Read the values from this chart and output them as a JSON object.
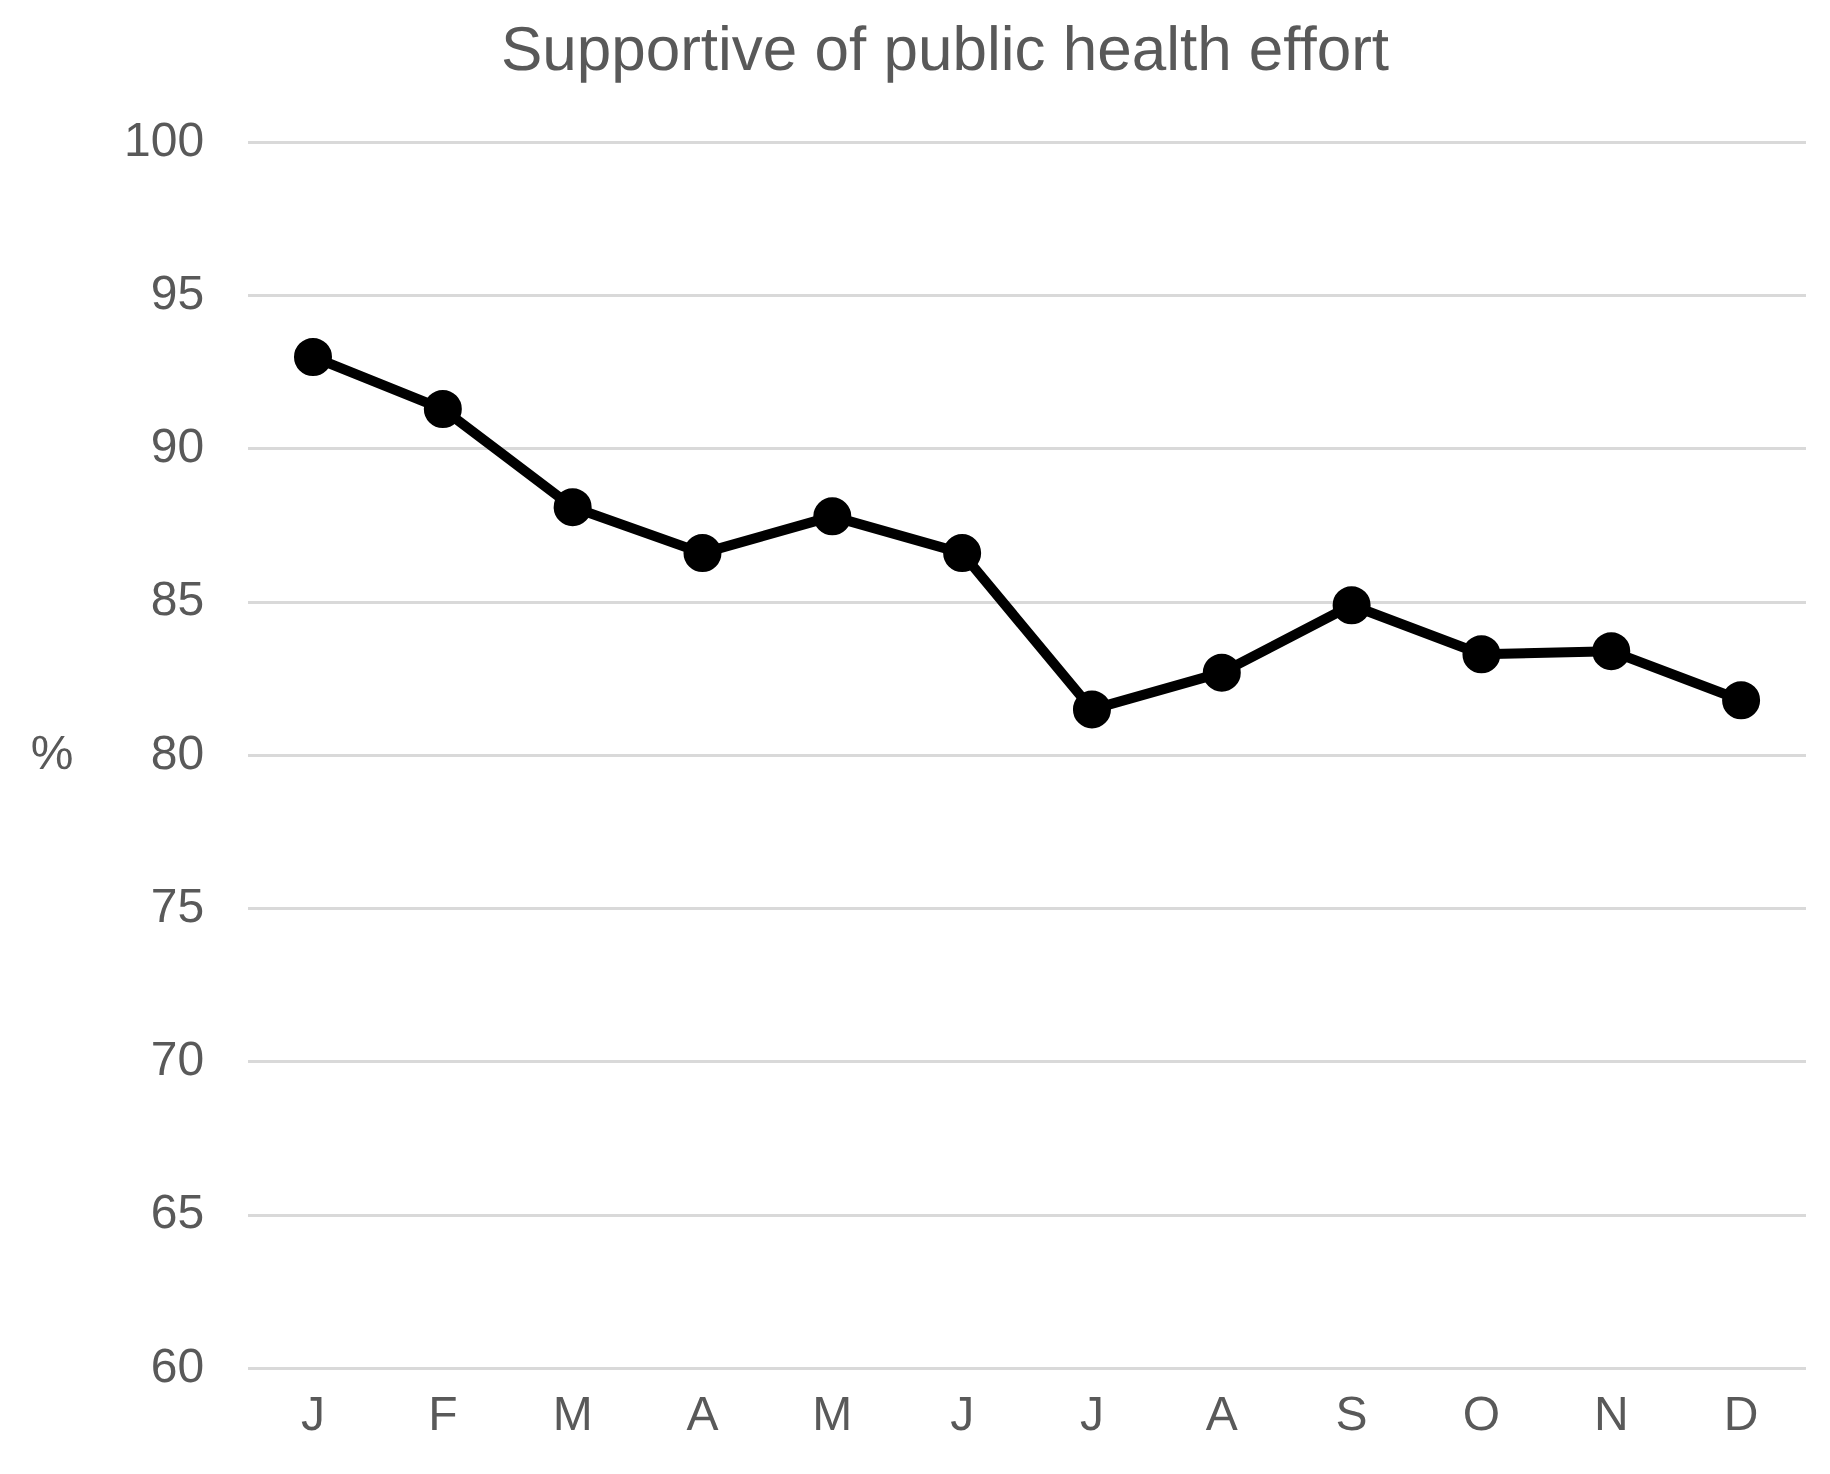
{
  "chart_data": {
    "type": "line",
    "title": "Supportive of public health effort",
    "ylabel": "%",
    "categories": [
      "J",
      "F",
      "M",
      "A",
      "M",
      "J",
      "J",
      "A",
      "S",
      "O",
      "N",
      "D"
    ],
    "series": [
      {
        "color": "#000000",
        "values": [
          93.0,
          91.3,
          88.1,
          86.6,
          87.8,
          86.6,
          81.5,
          82.7,
          84.9,
          83.3,
          83.4,
          81.8
        ]
      }
    ],
    "ylim": [
      60,
      100
    ],
    "yticks": [
      60,
      65,
      70,
      75,
      80,
      85,
      90,
      95,
      100
    ],
    "grid": "y",
    "legend": false,
    "marker": "circle",
    "line_style": "solid"
  }
}
